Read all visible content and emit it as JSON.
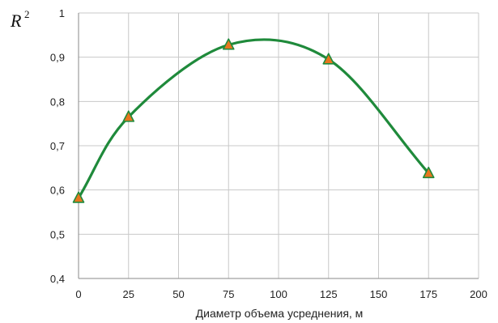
{
  "chart_data": {
    "type": "line",
    "title": "",
    "xlabel": "Диаметр объема усреднения, м",
    "ylabel": "R",
    "ylabel_superscript": "2",
    "xlim": [
      0,
      200
    ],
    "ylim": [
      0.4,
      1.0
    ],
    "x_ticks": [
      0,
      25,
      50,
      75,
      100,
      125,
      150,
      175,
      200
    ],
    "y_ticks": [
      0.4,
      0.5,
      0.6,
      0.7,
      0.8,
      0.9,
      1.0
    ],
    "x_tick_labels": [
      "0",
      "25",
      "50",
      "75",
      "100",
      "125",
      "150",
      "175",
      "200"
    ],
    "y_tick_labels": [
      "0,4",
      "0,5",
      "0,6",
      "0,7",
      "0,8",
      "0,9",
      "1"
    ],
    "grid": true,
    "series": [
      {
        "x": [
          0,
          25,
          75,
          125,
          175
        ],
        "y": [
          0.582,
          0.765,
          0.928,
          0.895,
          0.638
        ],
        "line_color": "#1f8a3b",
        "marker": "triangle",
        "marker_color": "#e8761e",
        "smooth": true
      }
    ]
  }
}
